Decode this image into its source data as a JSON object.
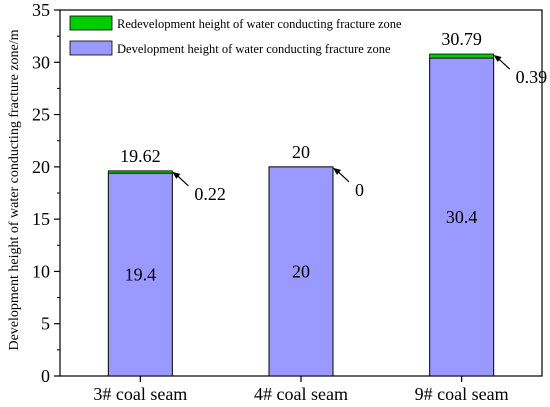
{
  "chart_data": {
    "type": "bar",
    "stacked": true,
    "title": "",
    "xlabel": "",
    "ylabel": "Development height of water conducting fracture zone/m",
    "ylim": [
      0,
      35
    ],
    "yticks": [
      0,
      5,
      10,
      15,
      20,
      25,
      30,
      35
    ],
    "categories": [
      "3# coal seam",
      "4# coal seam",
      "9# coal seam"
    ],
    "series": [
      {
        "name": "Development height of water conducting fracture zone",
        "values": [
          19.4,
          20,
          30.4
        ],
        "color": "#9999ff",
        "labels": [
          "19.4",
          "20",
          "30.4"
        ]
      },
      {
        "name": "Redevelopment height of water conducting fracture zone",
        "values": [
          0.22,
          0,
          0.39
        ],
        "color": "#00cc00",
        "labels": [
          "0.22",
          "0",
          "0.39"
        ]
      }
    ],
    "totals": [
      "19.62",
      "20",
      "30.79"
    ],
    "legend": "top-left",
    "grid": false
  }
}
